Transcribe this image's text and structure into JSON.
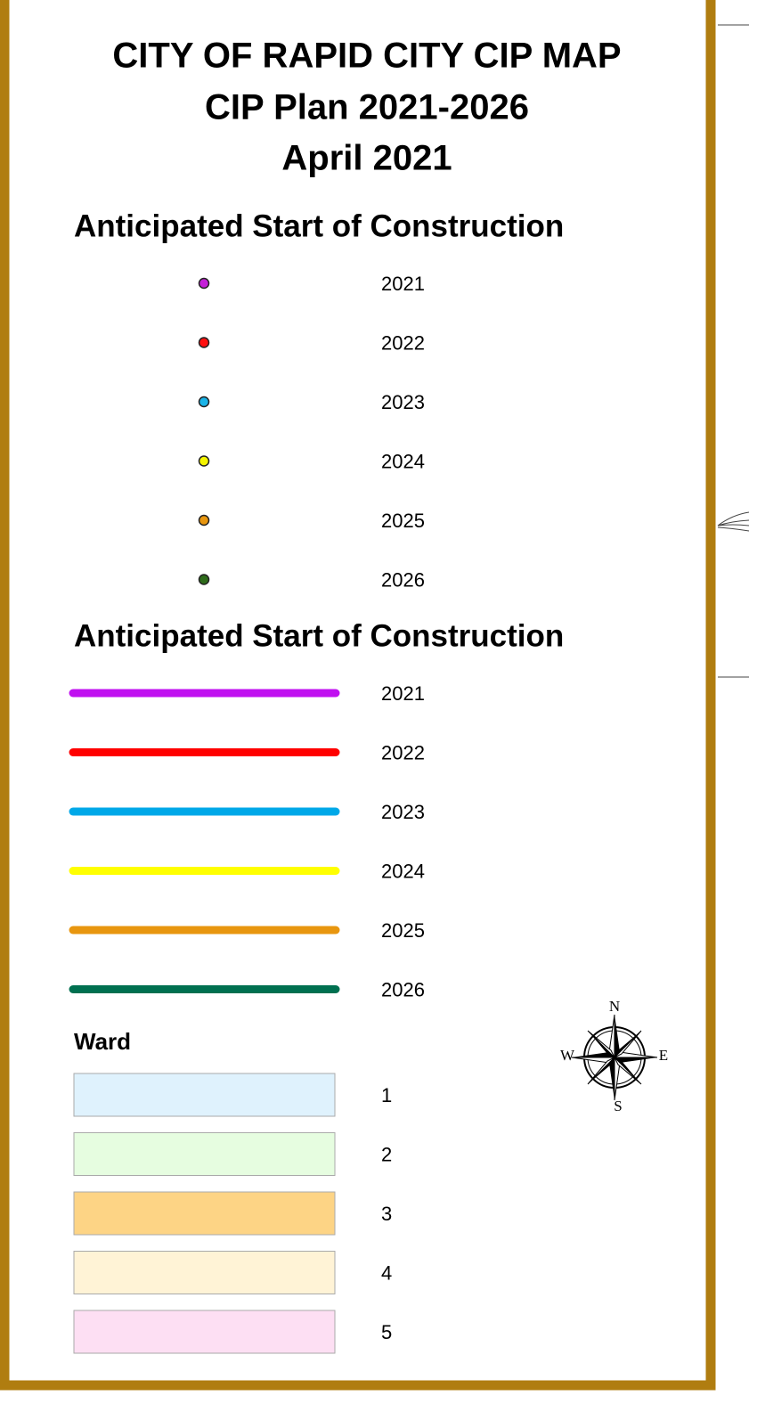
{
  "title": [
    "CITY OF RAPID CITY CIP MAP",
    "CIP Plan 2021-2026",
    "April 2021"
  ],
  "point_legend": {
    "heading": "Anticipated Start of Construction",
    "items": [
      {
        "label": "2021",
        "color": "#c41fd8"
      },
      {
        "label": "2022",
        "color": "#ff1010"
      },
      {
        "label": "2023",
        "color": "#1ab4e8"
      },
      {
        "label": "2024",
        "color": "#f5f500"
      },
      {
        "label": "2025",
        "color": "#e8960f"
      },
      {
        "label": "2026",
        "color": "#2e6b1a"
      }
    ]
  },
  "line_legend": {
    "heading": "Anticipated Start of Construction",
    "items": [
      {
        "label": "2021",
        "color": "#c010f0"
      },
      {
        "label": "2022",
        "color": "#ff0000"
      },
      {
        "label": "2023",
        "color": "#00a8e8"
      },
      {
        "label": "2024",
        "color": "#ffff00"
      },
      {
        "label": "2025",
        "color": "#e8960f"
      },
      {
        "label": "2026",
        "color": "#007050"
      }
    ]
  },
  "ward_legend": {
    "heading": "Ward",
    "items": [
      {
        "label": "1",
        "color": "#dff2fd"
      },
      {
        "label": "2",
        "color": "#e6fde0"
      },
      {
        "label": "3",
        "color": "#fdd485"
      },
      {
        "label": "4",
        "color": "#fff3d6"
      },
      {
        "label": "5",
        "color": "#fddff3"
      }
    ]
  },
  "compass": {
    "north": "N",
    "east": "E",
    "south": "S",
    "west": "W"
  }
}
